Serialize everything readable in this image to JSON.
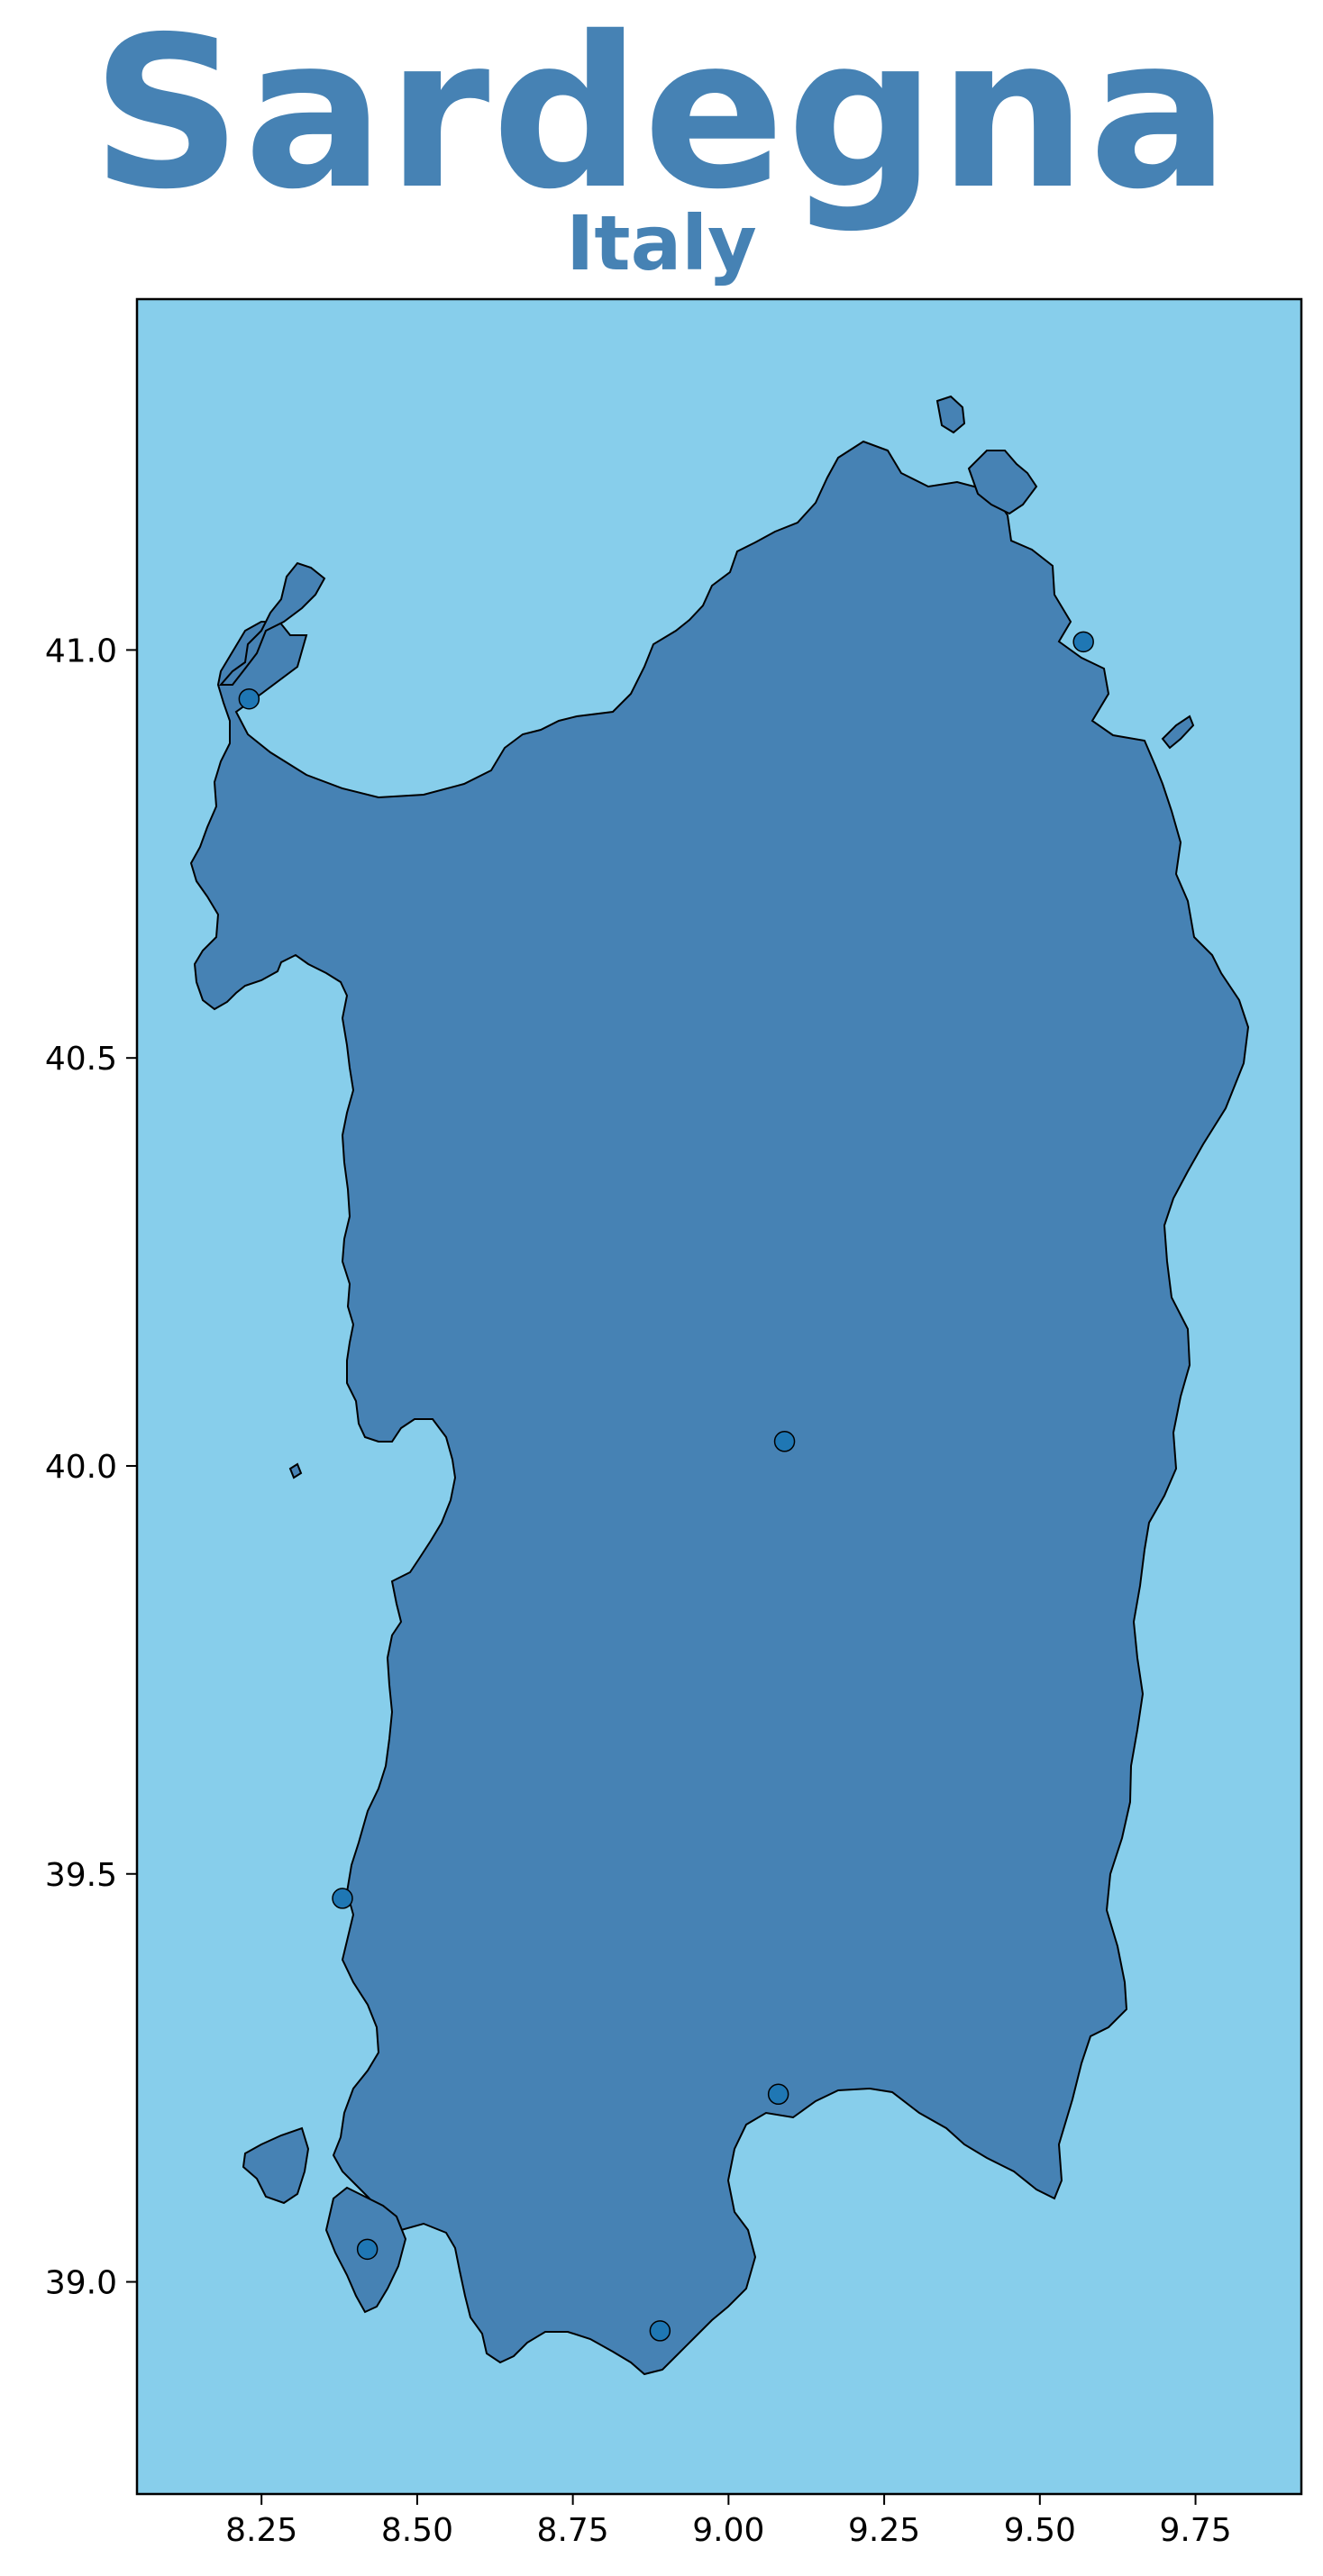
{
  "header": {
    "title": "Sardegna",
    "subtitle": "Italy"
  },
  "colors": {
    "sea": "#87ceeb",
    "land": "#4682b4",
    "title": "#4682b4",
    "point": "#1f77b4",
    "stroke": "#000000"
  },
  "chart_data": {
    "type": "scatter",
    "map_region": "Sardegna",
    "xlim": [
      8.05,
      9.92
    ],
    "ylim": [
      38.74,
      41.43
    ],
    "x_ticks": [
      "8.25",
      "8.50",
      "8.75",
      "9.00",
      "9.25",
      "9.50",
      "9.75"
    ],
    "y_ticks": [
      "39.0",
      "39.5",
      "40.0",
      "40.5",
      "41.0"
    ],
    "grid": false,
    "points": [
      {
        "lon": 8.23,
        "lat": 40.94
      },
      {
        "lon": 9.57,
        "lat": 41.01
      },
      {
        "lon": 9.09,
        "lat": 40.03
      },
      {
        "lon": 8.38,
        "lat": 39.47
      },
      {
        "lon": 9.08,
        "lat": 39.23
      },
      {
        "lon": 8.42,
        "lat": 39.04
      },
      {
        "lon": 8.89,
        "lat": 38.94
      }
    ]
  }
}
